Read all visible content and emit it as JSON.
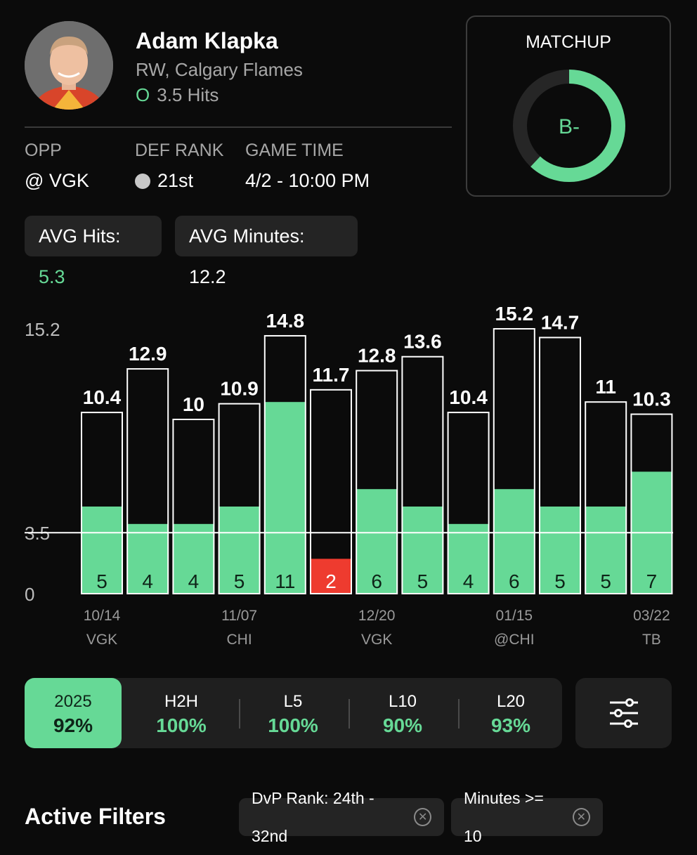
{
  "player": {
    "name": "Adam Klapka",
    "position_team": "RW, Calgary Flames",
    "prop_side": "O",
    "prop": "3.5 Hits"
  },
  "info": {
    "opp_label": "OPP",
    "opp_value": "@ VGK",
    "def_rank_label": "DEF RANK",
    "def_rank_value": "21st",
    "game_time_label": "GAME TIME",
    "game_time_value": "4/2 - 10:00 PM"
  },
  "matchup": {
    "title": "MATCHUP",
    "grade": "B-",
    "fill_fraction": 0.62,
    "ring_color": "#66d996",
    "track_color": "#262626"
  },
  "averages": {
    "hits_label": "AVG Hits:",
    "hits_value": "5.3",
    "minutes_label": "AVG Minutes:",
    "minutes_value": "12.2"
  },
  "chart_data": {
    "type": "bar",
    "line_value": 3.5,
    "y_ticks": [
      "15.2",
      "3.5",
      "0"
    ],
    "ylim": [
      0,
      15.2
    ],
    "primary_label": "Minutes",
    "inner_label": "Hits",
    "minutes": [
      10.4,
      12.9,
      10,
      10.9,
      14.8,
      11.7,
      12.8,
      13.6,
      10.4,
      15.2,
      14.7,
      11,
      10.3
    ],
    "minutes_labels": [
      "10.4",
      "12.9",
      "10",
      "10.9",
      "14.8",
      "11.7",
      "12.8",
      "13.6",
      "10.4",
      "15.2",
      "14.7",
      "11",
      "10.3"
    ],
    "hits": [
      5,
      4,
      4,
      5,
      11,
      2,
      6,
      5,
      4,
      6,
      5,
      5,
      7
    ],
    "x_labels": [
      {
        "index": 0,
        "date": "10/14",
        "opp": "VGK"
      },
      {
        "index": 3,
        "date": "11/07",
        "opp": "CHI"
      },
      {
        "index": 6,
        "date": "12/20",
        "opp": "VGK"
      },
      {
        "index": 9,
        "date": "01/15",
        "opp": "@CHI"
      },
      {
        "index": 12,
        "date": "03/22",
        "opp": "TB"
      }
    ],
    "colors": {
      "over": "#66d996",
      "under": "#ee3b2f",
      "outline": "#ffffff"
    }
  },
  "tabs": [
    {
      "label": "2025",
      "pct": "92%",
      "active": true
    },
    {
      "label": "H2H",
      "pct": "100%",
      "active": false
    },
    {
      "label": "L5",
      "pct": "100%",
      "active": false
    },
    {
      "label": "L10",
      "pct": "90%",
      "active": false
    },
    {
      "label": "L20",
      "pct": "93%",
      "active": false
    }
  ],
  "filters": {
    "title": "Active Filters",
    "chips": [
      "DvP Rank: 24th - 32nd",
      "Minutes >= 10"
    ]
  },
  "icons": {
    "filter_button": "sliders-icon",
    "chip_remove": "close-circle-icon"
  }
}
